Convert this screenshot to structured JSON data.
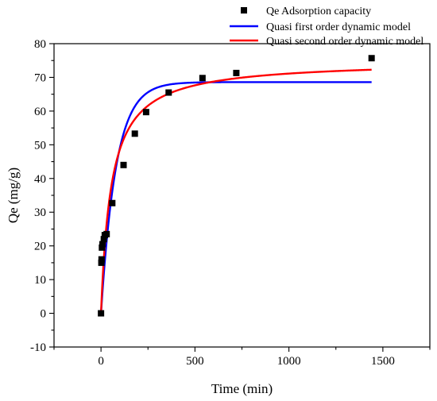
{
  "chart_data": {
    "type": "scatter",
    "xlabel": "Time (min)",
    "ylabel": "Qe (mg/g)",
    "xlim": [
      -250,
      1750
    ],
    "ylim": [
      -10,
      80
    ],
    "xticks": [
      0,
      500,
      1000,
      1500
    ],
    "yticks": [
      -10,
      0,
      10,
      20,
      30,
      40,
      50,
      60,
      70,
      80
    ],
    "grid": false,
    "legend_position": "top-right",
    "series": [
      {
        "name": "Qe Adsorption capacity",
        "kind": "scatter",
        "marker": "square",
        "color": "#000000",
        "points": [
          [
            0,
            0
          ],
          [
            2,
            15
          ],
          [
            3,
            16
          ],
          [
            5,
            19.5
          ],
          [
            8,
            20.5
          ],
          [
            15,
            22
          ],
          [
            20,
            23.2
          ],
          [
            30,
            23.5
          ],
          [
            60,
            32.7
          ],
          [
            120,
            44
          ],
          [
            180,
            53.3
          ],
          [
            240,
            59.7
          ],
          [
            360,
            65.5
          ],
          [
            540,
            69.8
          ],
          [
            720,
            71.3
          ],
          [
            1440,
            75.7
          ]
        ]
      },
      {
        "name": "Quasi first order dynamic model",
        "kind": "line",
        "color": "#0000ff",
        "model": "first-order",
        "qe": 68.6,
        "k": 0.0125,
        "x_range": [
          0,
          1440
        ]
      },
      {
        "name": "Quasi second order dynamic model",
        "kind": "line",
        "color": "#ff0000",
        "model": "second-order",
        "qe": 75.0,
        "k": 0.000245,
        "x_range": [
          0,
          1440
        ]
      }
    ]
  }
}
